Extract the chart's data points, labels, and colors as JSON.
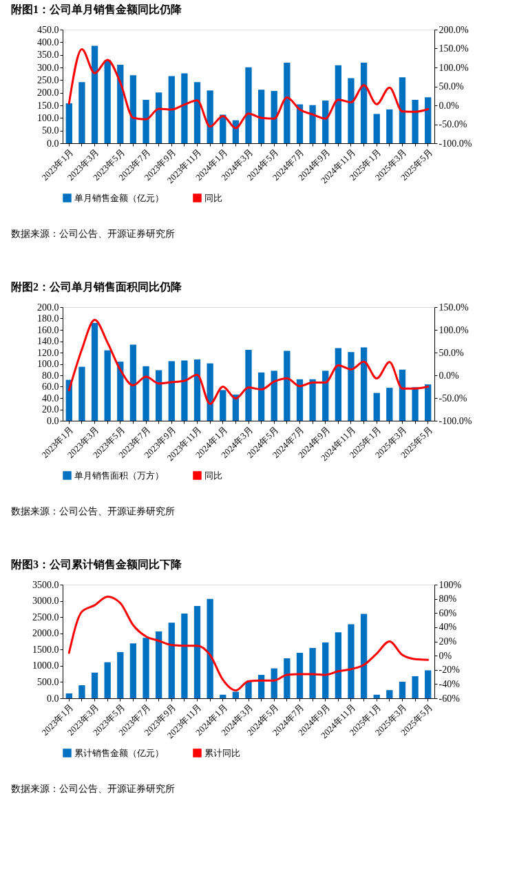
{
  "chart_data": [
    {
      "type": "bar",
      "title": "附图1：公司单月销售金额同比仍降",
      "categories": [
        "2023年1月",
        null,
        "2023年3月",
        null,
        "2023年5月",
        null,
        "2023年7月",
        null,
        "2023年9月",
        null,
        "2023年11月",
        null,
        "2024年1月",
        null,
        "2024年3月",
        null,
        "2024年5月",
        null,
        "2024年7月",
        null,
        "2024年9月",
        null,
        "2024年11月",
        null,
        "2025年1月",
        null,
        "2025年3月",
        null,
        "2025年5月"
      ],
      "series": [
        {
          "name": "单月销售金额（亿元）",
          "color": "#0070c0",
          "values": [
            158,
            242,
            386,
            330,
            311,
            269,
            172,
            201,
            266,
            277,
            242,
            209,
            113,
            91,
            301,
            212,
            207,
            319,
            154,
            151,
            169,
            309,
            258,
            319,
            116,
            134,
            261,
            172,
            182
          ]
        },
        {
          "name": "同比",
          "color": "#ff0000",
          "type": "line",
          "axis": "y2",
          "values": [
            5,
            148,
            85,
            120,
            60,
            -33,
            -37,
            -9,
            -11,
            2,
            13,
            -56,
            -28,
            -60,
            -22,
            -33,
            -35,
            21,
            -11,
            -24,
            -35,
            15,
            8,
            53,
            3,
            47,
            -16,
            -17,
            -10
          ]
        }
      ],
      "ylim": [
        0,
        450
      ],
      "yticks": [
        {
          "value": 0,
          "label": "0.0"
        },
        {
          "value": 50,
          "label": "50.0"
        },
        {
          "value": 100,
          "label": "100.0"
        },
        {
          "value": 150,
          "label": "150.0"
        },
        {
          "value": 200,
          "label": "200.0"
        },
        {
          "value": 250,
          "label": "250.0"
        },
        {
          "value": 300,
          "label": "300.0"
        },
        {
          "value": 350,
          "label": "350.0"
        },
        {
          "value": 400,
          "label": "400.0"
        },
        {
          "value": 450,
          "label": "450.0"
        }
      ],
      "y2lim": [
        -100,
        200
      ],
      "y2ticks": [
        {
          "value": -100,
          "label": "-100.0%"
        },
        {
          "value": -50,
          "label": "-50.0%"
        },
        {
          "value": 0,
          "label": "0.0%"
        },
        {
          "value": 50,
          "label": "50.0%"
        },
        {
          "value": 100,
          "label": "100.0%"
        },
        {
          "value": 150,
          "label": "150.0%"
        },
        {
          "value": 200,
          "label": "200.0%"
        }
      ],
      "legend": "bottom",
      "annotations": [
        "数据来源：公司公告、开源证券研究所"
      ]
    },
    {
      "type": "bar",
      "title": "附图2：公司单月销售面积同比仍降",
      "categories": [
        "2023年1月",
        null,
        "2023年3月",
        null,
        "2023年5月",
        null,
        "2023年7月",
        null,
        "2023年9月",
        null,
        "2023年11月",
        null,
        "2024年1月",
        null,
        "2024年3月",
        null,
        "2024年5月",
        null,
        "2024年7月",
        null,
        "2024年9月",
        null,
        "2024年11月",
        null,
        "2025年1月",
        null,
        "2025年3月",
        null,
        "2025年5月"
      ],
      "series": [
        {
          "name": "单月销售面积（万方）",
          "color": "#0070c0",
          "values": [
            72,
            95,
            172,
            124,
            104,
            134,
            96,
            89,
            105,
            106,
            108,
            101,
            54,
            46,
            125,
            85,
            88,
            123,
            73,
            73,
            88,
            128,
            121,
            129,
            49,
            58,
            90,
            59,
            64
          ]
        },
        {
          "name": "同比",
          "color": "#ff0000",
          "type": "line",
          "axis": "y2",
          "values": [
            -33,
            57,
            122,
            72,
            12,
            -22,
            -3,
            -18,
            -15,
            -12,
            1,
            -63,
            -25,
            -51,
            -27,
            -31,
            -14,
            -7,
            -24,
            -16,
            -16,
            22,
            13,
            30,
            -7,
            29,
            -29,
            -29,
            -25
          ]
        }
      ],
      "ylim": [
        0,
        200
      ],
      "yticks": [
        {
          "value": 0,
          "label": "0.0"
        },
        {
          "value": 20,
          "label": "20.0"
        },
        {
          "value": 40,
          "label": "40.0"
        },
        {
          "value": 60,
          "label": "60.0"
        },
        {
          "value": 80,
          "label": "80.0"
        },
        {
          "value": 100,
          "label": "100.0"
        },
        {
          "value": 120,
          "label": "120.0"
        },
        {
          "value": 140,
          "label": "140.0"
        },
        {
          "value": 160,
          "label": "160.0"
        },
        {
          "value": 180,
          "label": "180.0"
        },
        {
          "value": 200,
          "label": "200.0"
        }
      ],
      "y2lim": [
        -100,
        150
      ],
      "y2ticks": [
        {
          "value": -100,
          "label": "-100.0%"
        },
        {
          "value": -50,
          "label": "-50.0%"
        },
        {
          "value": 0,
          "label": "0.0%"
        },
        {
          "value": 50,
          "label": "50.0%"
        },
        {
          "value": 100,
          "label": "100.0%"
        },
        {
          "value": 150,
          "label": "150.0%"
        }
      ],
      "legend": "bottom",
      "annotations": [
        "数据来源：公司公告、开源证券研究所"
      ]
    },
    {
      "type": "bar",
      "title": "附图3：公司累计销售金额同比下降",
      "categories": [
        "2023年1月",
        null,
        "2023年3月",
        null,
        "2023年5月",
        null,
        "2023年7月",
        null,
        "2023年9月",
        null,
        "2023年11月",
        null,
        "2024年1月",
        null,
        "2024年3月",
        null,
        "2024年5月",
        null,
        "2024年7月",
        null,
        "2024年9月",
        null,
        "2024年11月",
        null,
        "2025年1月",
        null,
        "2025年3月",
        null,
        "2025年5月"
      ],
      "series": [
        {
          "name": "累计销售金额（亿元）",
          "color": "#0070c0",
          "values": [
            150,
            400,
            790,
            1110,
            1420,
            1690,
            1860,
            2060,
            2330,
            2610,
            2840,
            3060,
            110,
            200,
            510,
            720,
            920,
            1230,
            1400,
            1550,
            1720,
            2030,
            2280,
            2600,
            110,
            250,
            510,
            680,
            860
          ]
        },
        {
          "name": "累计同比",
          "color": "#ff0000",
          "type": "line",
          "axis": "y2",
          "values": [
            4,
            62,
            71,
            83,
            74,
            43,
            27,
            21,
            15,
            14,
            14,
            1,
            -34,
            -49,
            -36,
            -35,
            -35,
            -27,
            -26,
            -26,
            -27,
            -22,
            -19,
            -13,
            3,
            20,
            1,
            -5,
            -6
          ]
        }
      ],
      "ylim": [
        0,
        3500
      ],
      "yticks": [
        {
          "value": 0,
          "label": "0.0"
        },
        {
          "value": 500,
          "label": "500.0"
        },
        {
          "value": 1000,
          "label": "1000.0"
        },
        {
          "value": 1500,
          "label": "1500.0"
        },
        {
          "value": 2000,
          "label": "2000.0"
        },
        {
          "value": 2500,
          "label": "2500.0"
        },
        {
          "value": 3000,
          "label": "3000.0"
        },
        {
          "value": 3500,
          "label": "3500.0"
        }
      ],
      "y2lim": [
        -60,
        100
      ],
      "y2ticks": [
        {
          "value": -60,
          "label": "-60%"
        },
        {
          "value": -40,
          "label": "-40%"
        },
        {
          "value": -20,
          "label": "-20%"
        },
        {
          "value": 0,
          "label": "0%"
        },
        {
          "value": 20,
          "label": "20%"
        },
        {
          "value": 40,
          "label": "40%"
        },
        {
          "value": 60,
          "label": "60%"
        },
        {
          "value": 80,
          "label": "80%"
        },
        {
          "value": 100,
          "label": "100%"
        }
      ],
      "legend": "bottom",
      "annotations": [
        "数据来源：公司公告、开源证券研究所"
      ]
    }
  ]
}
